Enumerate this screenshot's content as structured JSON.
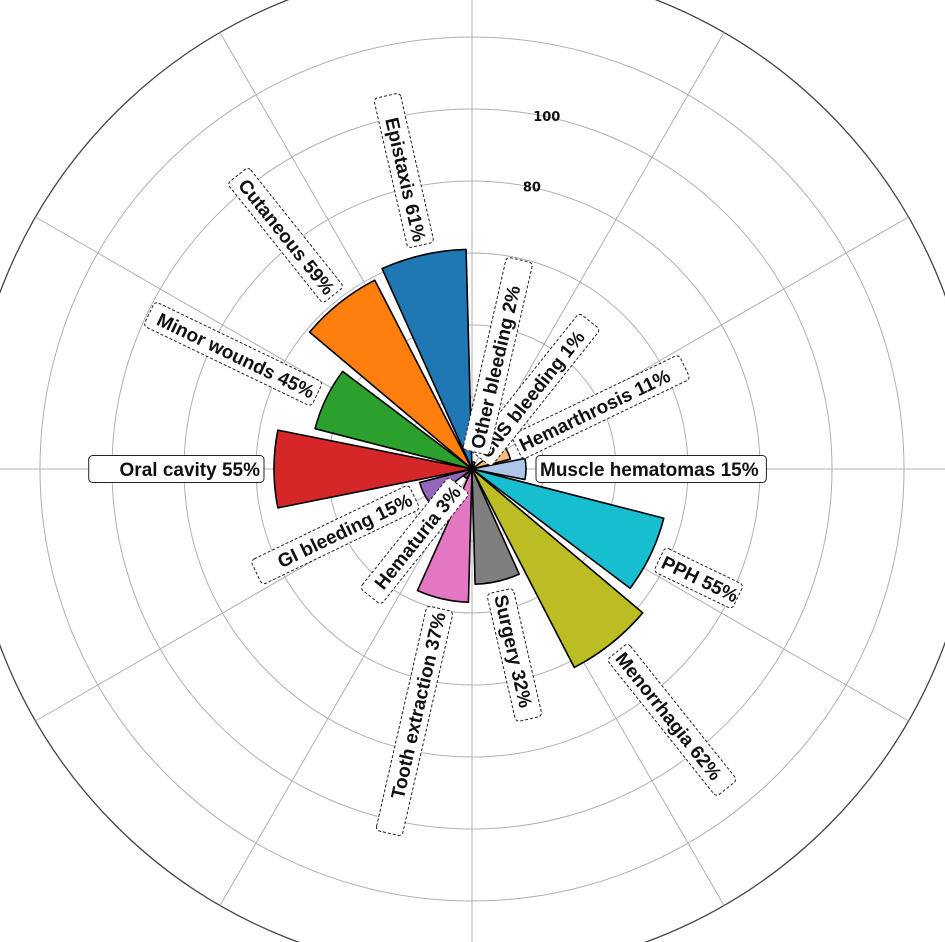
{
  "chart_data": {
    "type": "polar-bar",
    "title": "",
    "rlim": [
      0,
      140
    ],
    "rticks": [
      80,
      100
    ],
    "rtick_labels": [
      "80",
      "100"
    ],
    "grid": true,
    "angle_grid_deg": [
      0,
      30,
      60,
      90,
      120,
      150,
      180,
      210,
      240,
      270,
      300,
      330
    ],
    "categories": [
      "Muscle hematomas",
      "Hemarthrosis",
      "CNS bleeding",
      "Other bleeding",
      "Epistaxis",
      "Cutaneous",
      "Minor wounds",
      "Oral cavity",
      "GI bleeding",
      "Hematuria",
      "Tooth extraction",
      "Surgery",
      "Menorrhagia",
      "PPH"
    ],
    "values": [
      15,
      11,
      1,
      2,
      61,
      59,
      45,
      55,
      15,
      3,
      37,
      32,
      62,
      55
    ],
    "labels": [
      "Muscle hematomas 15%",
      "Hemarthrosis 11%",
      "CNS bleeding 1%",
      "Other bleeding 2%",
      "Epistaxis 61%",
      "Cutaneous 59%",
      "Minor wounds 45%",
      "Oral cavity 55%",
      "GI bleeding 15%",
      "Hematuria 3%",
      "Tooth extraction 37%",
      "Surgery 32%",
      "Menorrhagia 62%",
      "PPH 55%"
    ],
    "colors": [
      "#aec7e8",
      "#ffbb78",
      "#98df8a",
      "#ff9896",
      "#1f77b4",
      "#ff7f0e",
      "#2ca02c",
      "#d62728",
      "#9467bd",
      "#8c564b",
      "#e377c2",
      "#7f7f7f",
      "#bcbd22",
      "#17becf"
    ]
  }
}
